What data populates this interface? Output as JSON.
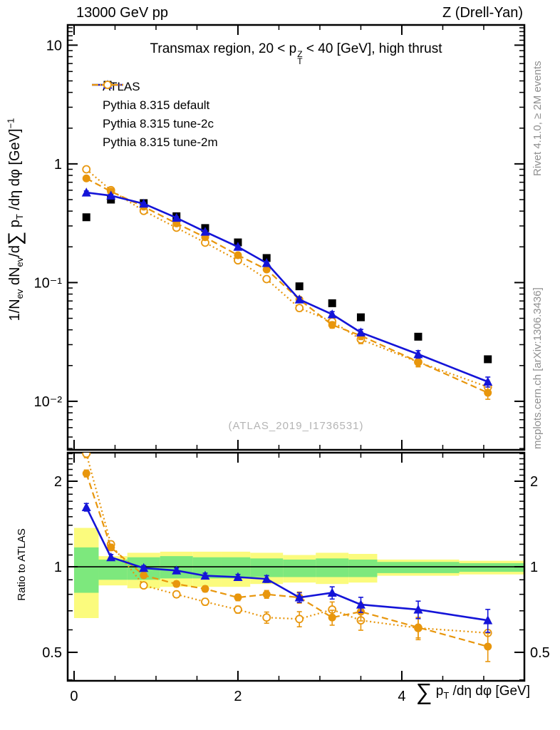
{
  "header": {
    "left": "13000 GeV pp",
    "right": "Z (Drell-Yan)"
  },
  "title": {
    "p1": "Transmax region, 20 < p",
    "sup": "Z",
    "sub": "T",
    "p2": " < 40 [GeV], high thrust"
  },
  "side_notes": {
    "top_right": "Rivet 4.1.0, ≥ 2M events",
    "bottom_right": "mcplots.cern.ch [arXiv:1306.3436]"
  },
  "watermark": "(ATLAS_2019_I1736531)",
  "axes": {
    "y_main": {
      "p1": "1/N",
      "s1": "ev",
      "p2": " dN",
      "s2": "ev",
      "p3": "/d",
      "sum": "∑",
      "p4": " p",
      "s3": "T",
      "p5": " /dη dφ  [GeV]",
      "sup1": "−1"
    },
    "x": {
      "sum": "∑",
      "p1": " p",
      "s1": "T",
      "p2": " /dη dφ [GeV]"
    },
    "ratio": "Ratio to ATLAS"
  },
  "colors": {
    "blue": "#1414d8",
    "orange": "#e8960c",
    "black": "#000000",
    "band_yellow": "#fbfb7d",
    "band_green": "#7de87d",
    "gray_text": "#8f8f8f",
    "watermark": "#b4b4b4"
  },
  "legend": [
    {
      "label": "ATLAS",
      "marker": "square",
      "line": "none",
      "color": "#000000"
    },
    {
      "label": "Pythia 8.315 default",
      "marker": "triangle",
      "line": "solid",
      "color": "#1414d8"
    },
    {
      "label": "Pythia 8.315 tune-2c",
      "marker": "circle",
      "line": "dash",
      "color": "#e8960c"
    },
    {
      "label": "Pythia 8.315 tune-2m",
      "marker": "circle-open",
      "line": "dot",
      "color": "#e8960c"
    }
  ],
  "chart_data": [
    {
      "type": "line",
      "panel": "main",
      "title": "Transmax region, 20 < pT(Z) < 40 [GeV], high thrust",
      "xlabel": "sum pT /deta dphi [GeV]",
      "ylabel": "1/Nev dNev/d sum pT /deta dphi [GeV]^-1",
      "x_range": [
        -0.078,
        5.496
      ],
      "y_range": [
        0.0039,
        14.8
      ],
      "y_scale": "log",
      "x_ticks": [
        {
          "v": 0,
          "label": "0"
        },
        {
          "v": 2,
          "label": "2"
        },
        {
          "v": 4,
          "label": "4"
        }
      ],
      "x_minor_step": 0.5,
      "y_ticks": [
        {
          "v": 10,
          "label": "10"
        },
        {
          "v": 1,
          "label": "1"
        },
        {
          "v": 0.1,
          "label": "10⁻¹"
        },
        {
          "v": 0.01,
          "label": "10⁻²"
        }
      ],
      "x": [
        0.15,
        0.45,
        0.85,
        1.25,
        1.6,
        2.0,
        2.35,
        2.75,
        3.15,
        3.5,
        4.2,
        5.05
      ],
      "series": [
        {
          "name": "ATLAS",
          "marker": "square",
          "line": "none",
          "color": "#000000",
          "values": [
            0.355,
            0.5,
            0.467,
            0.362,
            0.288,
            0.218,
            0.161,
            0.093,
            0.067,
            0.051,
            0.035,
            0.0226
          ]
        },
        {
          "name": "Pythia 8.315 tune-2m",
          "marker": "circle-open",
          "line": "dot",
          "color": "#e8960c",
          "values": [
            0.9,
            0.6,
            0.402,
            0.29,
            0.217,
            0.154,
            0.107,
            0.061,
            0.047,
            0.0332,
            0.0214,
            0.0132
          ],
          "err": [
            0.028,
            0.015,
            0.009,
            0.007,
            0.006,
            0.004,
            0.005,
            0.0037,
            0.003,
            0.0026,
            0.0019,
            0.0015
          ]
        },
        {
          "name": "Pythia 8.315 tune-2c",
          "marker": "circle",
          "line": "dash",
          "color": "#e8960c",
          "values": [
            0.754,
            0.585,
            0.436,
            0.315,
            0.241,
            0.17,
            0.129,
            0.072,
            0.044,
            0.0357,
            0.0215,
            0.0118
          ],
          "err": [
            0.021,
            0.015,
            0.009,
            0.007,
            0.006,
            0.004,
            0.004,
            0.0033,
            0.0027,
            0.0026,
            0.0018,
            0.0014
          ]
        },
        {
          "name": "Pythia 8.315 default",
          "marker": "triangle",
          "line": "solid",
          "color": "#1414d8",
          "values": [
            0.573,
            0.54,
            0.462,
            0.351,
            0.268,
            0.2,
            0.146,
            0.072,
            0.054,
            0.038,
            0.0249,
            0.0146
          ],
          "err": [
            0.018,
            0.013,
            0.009,
            0.007,
            0.006,
            0.004,
            0.004,
            0.003,
            0.003,
            0.0023,
            0.0018,
            0.0014
          ]
        }
      ]
    },
    {
      "type": "line",
      "panel": "ratio",
      "ylabel": "Ratio to ATLAS",
      "x_range": [
        -0.078,
        5.496
      ],
      "y_range": [
        0.397,
        2.52
      ],
      "y_scale": "log",
      "reference_line": 1,
      "y_ticks": [
        {
          "v": 2,
          "label": "2"
        },
        {
          "v": 1,
          "label": "1"
        },
        {
          "v": 0.5,
          "label": "0.5"
        }
      ],
      "y_minor": [
        0.4,
        0.6,
        0.7,
        0.8,
        0.9,
        1.1,
        1.2,
        1.3,
        1.4,
        1.5,
        1.6,
        1.7,
        1.8,
        1.9,
        2.1,
        2.2,
        2.3,
        2.4,
        2.5
      ],
      "bands": {
        "bins": [
          [
            0,
            0.3
          ],
          [
            0.3,
            0.65
          ],
          [
            0.65,
            1.05
          ],
          [
            1.05,
            1.45
          ],
          [
            1.45,
            1.8
          ],
          [
            1.8,
            2.15
          ],
          [
            2.15,
            2.55
          ],
          [
            2.55,
            2.95
          ],
          [
            2.95,
            3.35
          ],
          [
            3.35,
            3.7
          ],
          [
            3.7,
            4.7
          ],
          [
            4.7,
            5.5
          ]
        ],
        "yellow": [
          [
            0.66,
            1.37
          ],
          [
            0.86,
            1.09
          ],
          [
            0.84,
            1.12
          ],
          [
            0.85,
            1.13
          ],
          [
            0.85,
            1.13
          ],
          [
            0.85,
            1.13
          ],
          [
            0.87,
            1.12
          ],
          [
            0.88,
            1.1
          ],
          [
            0.87,
            1.12
          ],
          [
            0.88,
            1.11
          ],
          [
            0.93,
            1.06
          ],
          [
            0.94,
            1.05
          ]
        ],
        "green": [
          [
            0.81,
            1.17
          ],
          [
            0.9,
            1.06
          ],
          [
            0.9,
            1.08
          ],
          [
            0.91,
            1.09
          ],
          [
            0.91,
            1.08
          ],
          [
            0.91,
            1.08
          ],
          [
            0.92,
            1.07
          ],
          [
            0.92,
            1.06
          ],
          [
            0.92,
            1.07
          ],
          [
            0.92,
            1.06
          ],
          [
            0.95,
            1.04
          ],
          [
            0.96,
            1.03
          ]
        ]
      },
      "x": [
        0.15,
        0.45,
        0.85,
        1.25,
        1.6,
        2.0,
        2.35,
        2.75,
        3.15,
        3.5,
        4.2,
        5.05
      ],
      "series": [
        {
          "name": "Pythia 8.315 tune-2m",
          "marker": "circle-open",
          "line": "dot",
          "color": "#e8960c",
          "values": [
            2.5,
            1.2,
            0.86,
            0.8,
            0.753,
            0.707,
            0.663,
            0.655,
            0.707,
            0.648,
            0.609,
            0.585
          ],
          "err": [
            0.08,
            0.03,
            0.02,
            0.02,
            0.02,
            0.02,
            0.03,
            0.04,
            0.045,
            0.05,
            0.055,
            0.065
          ]
        },
        {
          "name": "Pythia 8.315 tune-2c",
          "marker": "circle",
          "line": "dash",
          "color": "#e8960c",
          "values": [
            2.13,
            1.17,
            0.933,
            0.87,
            0.836,
            0.78,
            0.8,
            0.78,
            0.663,
            0.695,
            0.612,
            0.524
          ],
          "err": [
            0.06,
            0.03,
            0.02,
            0.02,
            0.02,
            0.02,
            0.025,
            0.035,
            0.04,
            0.05,
            0.05,
            0.06
          ]
        },
        {
          "name": "Pythia 8.315 default",
          "marker": "triangle",
          "line": "solid",
          "color": "#1414d8",
          "values": [
            1.62,
            1.08,
            0.99,
            0.97,
            0.93,
            0.92,
            0.906,
            0.78,
            0.81,
            0.736,
            0.707,
            0.648
          ],
          "err": [
            0.05,
            0.025,
            0.02,
            0.02,
            0.02,
            0.02,
            0.025,
            0.03,
            0.04,
            0.045,
            0.05,
            0.06
          ]
        }
      ]
    }
  ]
}
